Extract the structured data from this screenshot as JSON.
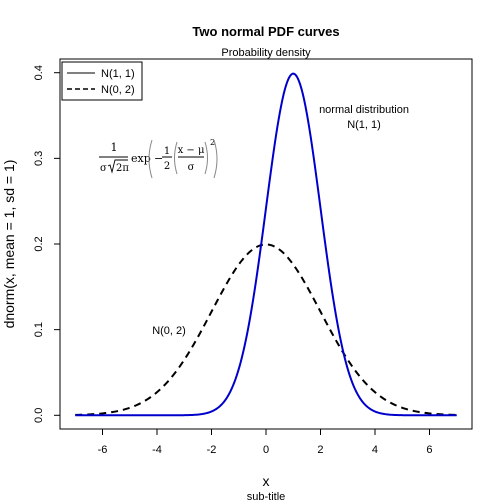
{
  "chart_data": {
    "type": "line",
    "title": "Two normal PDF curves",
    "subtitle": "Probability density",
    "xlabel": "x",
    "ylabel": "dnorm(x, mean = 1, sd = 1)",
    "sub": "sub-title",
    "xlim": [
      -7,
      7
    ],
    "ylim": [
      0,
      0.4
    ],
    "x_ticks": [
      -6,
      -4,
      -2,
      0,
      2,
      4,
      6
    ],
    "y_ticks": [
      0.0,
      0.1,
      0.2,
      0.3,
      0.4
    ],
    "x_tick_labels": [
      "-6",
      "-4",
      "-2",
      "0",
      "2",
      "4",
      "6"
    ],
    "y_tick_labels": [
      "0.0",
      "0.1",
      "0.2",
      "0.3",
      "0.4"
    ],
    "grid": false,
    "legend_position": "top-left",
    "series": [
      {
        "name": "N(1, 1)",
        "mean": 1,
        "sd": 1,
        "color": "#0000cc",
        "dash": "solid"
      },
      {
        "name": "N(0, 2)",
        "mean": 0,
        "sd": 2,
        "color": "#000000",
        "dash": "dashed"
      }
    ],
    "legend": [
      {
        "label": "N(1, 1)",
        "dash": "solid"
      },
      {
        "label": "N(0, 2)",
        "dash": "dashed"
      }
    ],
    "annotations": {
      "n11_line1": "normal distribution",
      "n11_line2": "N(1, 1)",
      "n02": "N(0, 2)"
    },
    "formula": {
      "num": "1",
      "den_sigma": "σ",
      "den_root": "2π",
      "exp": "exp",
      "minus": "−",
      "half_num": "1",
      "half_den": "2",
      "frac_num": "x − μ",
      "frac_den": "σ",
      "power": "2"
    }
  }
}
